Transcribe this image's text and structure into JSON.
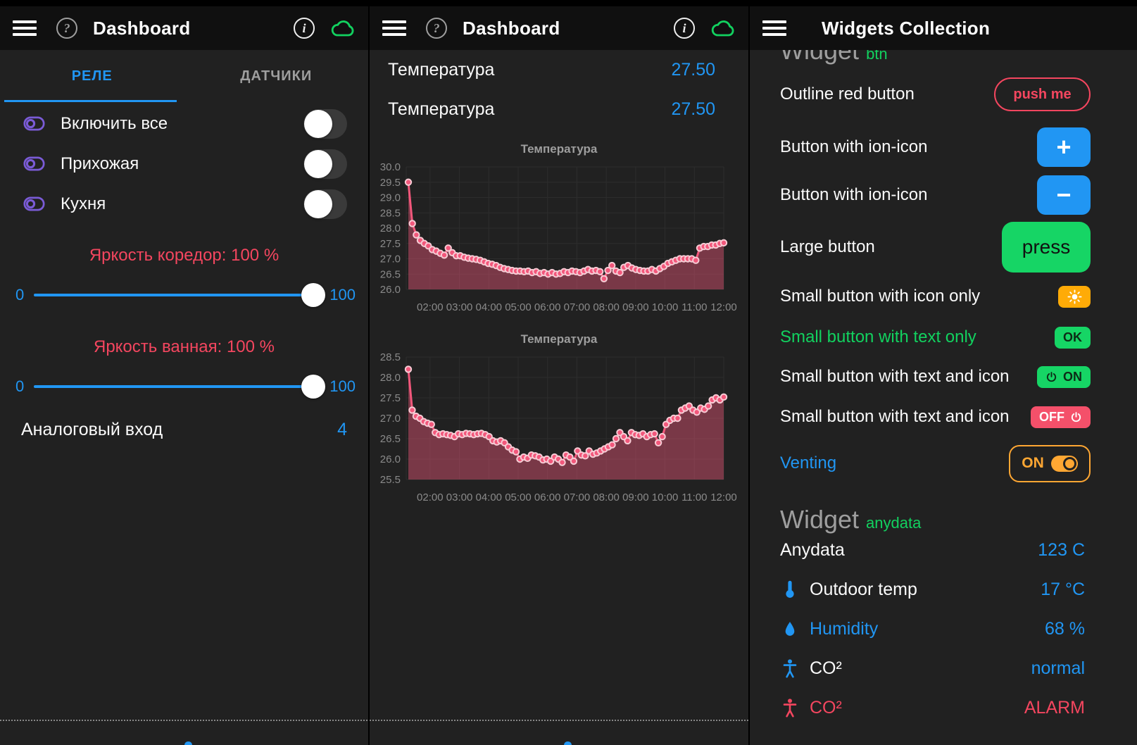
{
  "colors": {
    "accent_blue": "#2196f3",
    "accent_red": "#f4465f",
    "accent_green": "#12d15f",
    "accent_orange": "#ffab07",
    "accent_purple": "#7a5bd6",
    "chart_line": "#f2577b",
    "panel_bg": "#212121",
    "header_bg": "#101010"
  },
  "glyphs": {
    "plus": "+",
    "minus": "−"
  },
  "relays_screen": {
    "title": "Dashboard",
    "tabs": [
      {
        "label": "РЕЛЕ"
      },
      {
        "label": "ДАТЧИКИ"
      }
    ],
    "switch_rows": [
      {
        "label": "Включить все",
        "state": "off"
      },
      {
        "label": "Прихожая",
        "state": "off"
      },
      {
        "label": "Кухня",
        "state": "off"
      }
    ],
    "sliders": [
      {
        "caption": "Яркость коредор: 100 %",
        "min": "0",
        "max": "100",
        "value": 100
      },
      {
        "caption": "Яркость ванная: 100 %",
        "min": "0",
        "max": "100",
        "value": 100
      }
    ],
    "analog": {
      "label": "Аналоговый вход",
      "value": "4"
    }
  },
  "sensors_screen": {
    "title": "Dashboard",
    "value_rows": [
      {
        "label": "Температура",
        "value": "27.50"
      },
      {
        "label": "Температура",
        "value": "27.50"
      }
    ]
  },
  "widgets_screen": {
    "title": "Widgets Collection",
    "clipped_heading": {
      "main": "Widget",
      "sub": "btn"
    },
    "rows": [
      {
        "label": "Outline red button",
        "button": "push me"
      },
      {
        "label": "Button with ion-icon",
        "button": "+"
      },
      {
        "label": "Button with ion-icon",
        "button": "−"
      },
      {
        "label": "Large button",
        "button": "press"
      },
      {
        "label": "Small button with icon only",
        "button": ""
      },
      {
        "label": "Small button with text only",
        "button": "OK"
      },
      {
        "label": "Small button with text and icon",
        "button": "ON"
      },
      {
        "label": "Small button with text and icon",
        "button": "OFF"
      },
      {
        "label": "Venting",
        "button": "ON",
        "toggle_state": "on"
      }
    ],
    "anydata": {
      "heading_main": "Widget",
      "heading_sub": "anydata",
      "rows": [
        {
          "icon": "none",
          "label": "Anydata",
          "value": "123 C"
        },
        {
          "icon": "thermometer",
          "label": "Outdoor temp",
          "value": "17 °C"
        },
        {
          "icon": "droplet",
          "label": "Humidity",
          "value": "68 %"
        },
        {
          "icon": "body",
          "label": "CO²",
          "value": "normal"
        },
        {
          "icon": "body-alarm",
          "label": "CO²",
          "value": "ALARM"
        }
      ]
    }
  },
  "chart_data": [
    {
      "type": "line",
      "title": "Температура",
      "ylabel": "",
      "xlabel": "",
      "grid": true,
      "legend": "none",
      "ylim": [
        26.0,
        30.0
      ],
      "yticks": [
        30.0,
        29.5,
        29.0,
        28.5,
        28.0,
        27.5,
        27.0,
        26.5,
        26.0
      ],
      "x_labels": [
        "02:00",
        "03:00",
        "04:00",
        "05:00",
        "06:00",
        "07:00",
        "08:00",
        "09:00",
        "10:00",
        "11:00",
        "12:00"
      ],
      "values": [
        29.5,
        28.15,
        27.78,
        27.6,
        27.5,
        27.42,
        27.3,
        27.25,
        27.18,
        27.12,
        27.35,
        27.2,
        27.1,
        27.1,
        27.05,
        27.02,
        27.0,
        26.98,
        26.95,
        26.9,
        26.85,
        26.82,
        26.78,
        26.72,
        26.68,
        26.65,
        26.62,
        26.6,
        26.6,
        26.58,
        26.6,
        26.55,
        26.58,
        26.52,
        26.55,
        26.5,
        26.55,
        26.5,
        26.52,
        26.58,
        26.55,
        26.6,
        26.58,
        26.55,
        26.6,
        26.65,
        26.6,
        26.62,
        26.58,
        26.35,
        26.62,
        26.78,
        26.6,
        26.55,
        26.72,
        26.78,
        26.7,
        26.65,
        26.62,
        26.6,
        26.6,
        26.65,
        26.6,
        26.68,
        26.75,
        26.85,
        26.9,
        26.95,
        27.0,
        27.0,
        27.0,
        27.0,
        26.95,
        27.35,
        27.4,
        27.4,
        27.45,
        27.45,
        27.5,
        27.52
      ]
    },
    {
      "type": "line",
      "title": "Температура",
      "ylabel": "",
      "xlabel": "",
      "grid": true,
      "legend": "none",
      "ylim": [
        25.5,
        28.5
      ],
      "yticks": [
        28.5,
        28.0,
        27.5,
        27.0,
        26.5,
        26.0,
        25.5
      ],
      "x_labels": [
        "02:00",
        "03:00",
        "04:00",
        "05:00",
        "06:00",
        "07:00",
        "08:00",
        "09:00",
        "10:00",
        "11:00",
        "12:00"
      ],
      "values": [
        28.2,
        27.2,
        27.05,
        27.0,
        26.92,
        26.88,
        26.85,
        26.65,
        26.6,
        26.62,
        26.6,
        26.58,
        26.55,
        26.62,
        26.6,
        26.63,
        26.62,
        26.6,
        26.62,
        26.63,
        26.6,
        26.55,
        26.45,
        26.42,
        26.45,
        26.4,
        26.3,
        26.22,
        26.18,
        26.0,
        26.05,
        26.02,
        26.1,
        26.08,
        26.05,
        25.98,
        26.0,
        25.95,
        26.05,
        26.0,
        25.92,
        26.1,
        26.05,
        25.95,
        26.2,
        26.1,
        26.08,
        26.2,
        26.12,
        26.15,
        26.2,
        26.25,
        26.3,
        26.35,
        26.5,
        26.65,
        26.55,
        26.45,
        26.65,
        26.6,
        26.58,
        26.62,
        26.55,
        26.6,
        26.62,
        26.4,
        26.55,
        26.85,
        26.95,
        27.0,
        27.0,
        27.2,
        27.25,
        27.3,
        27.2,
        27.15,
        27.25,
        27.22,
        27.3,
        27.45,
        27.5,
        27.45,
        27.52
      ]
    }
  ]
}
